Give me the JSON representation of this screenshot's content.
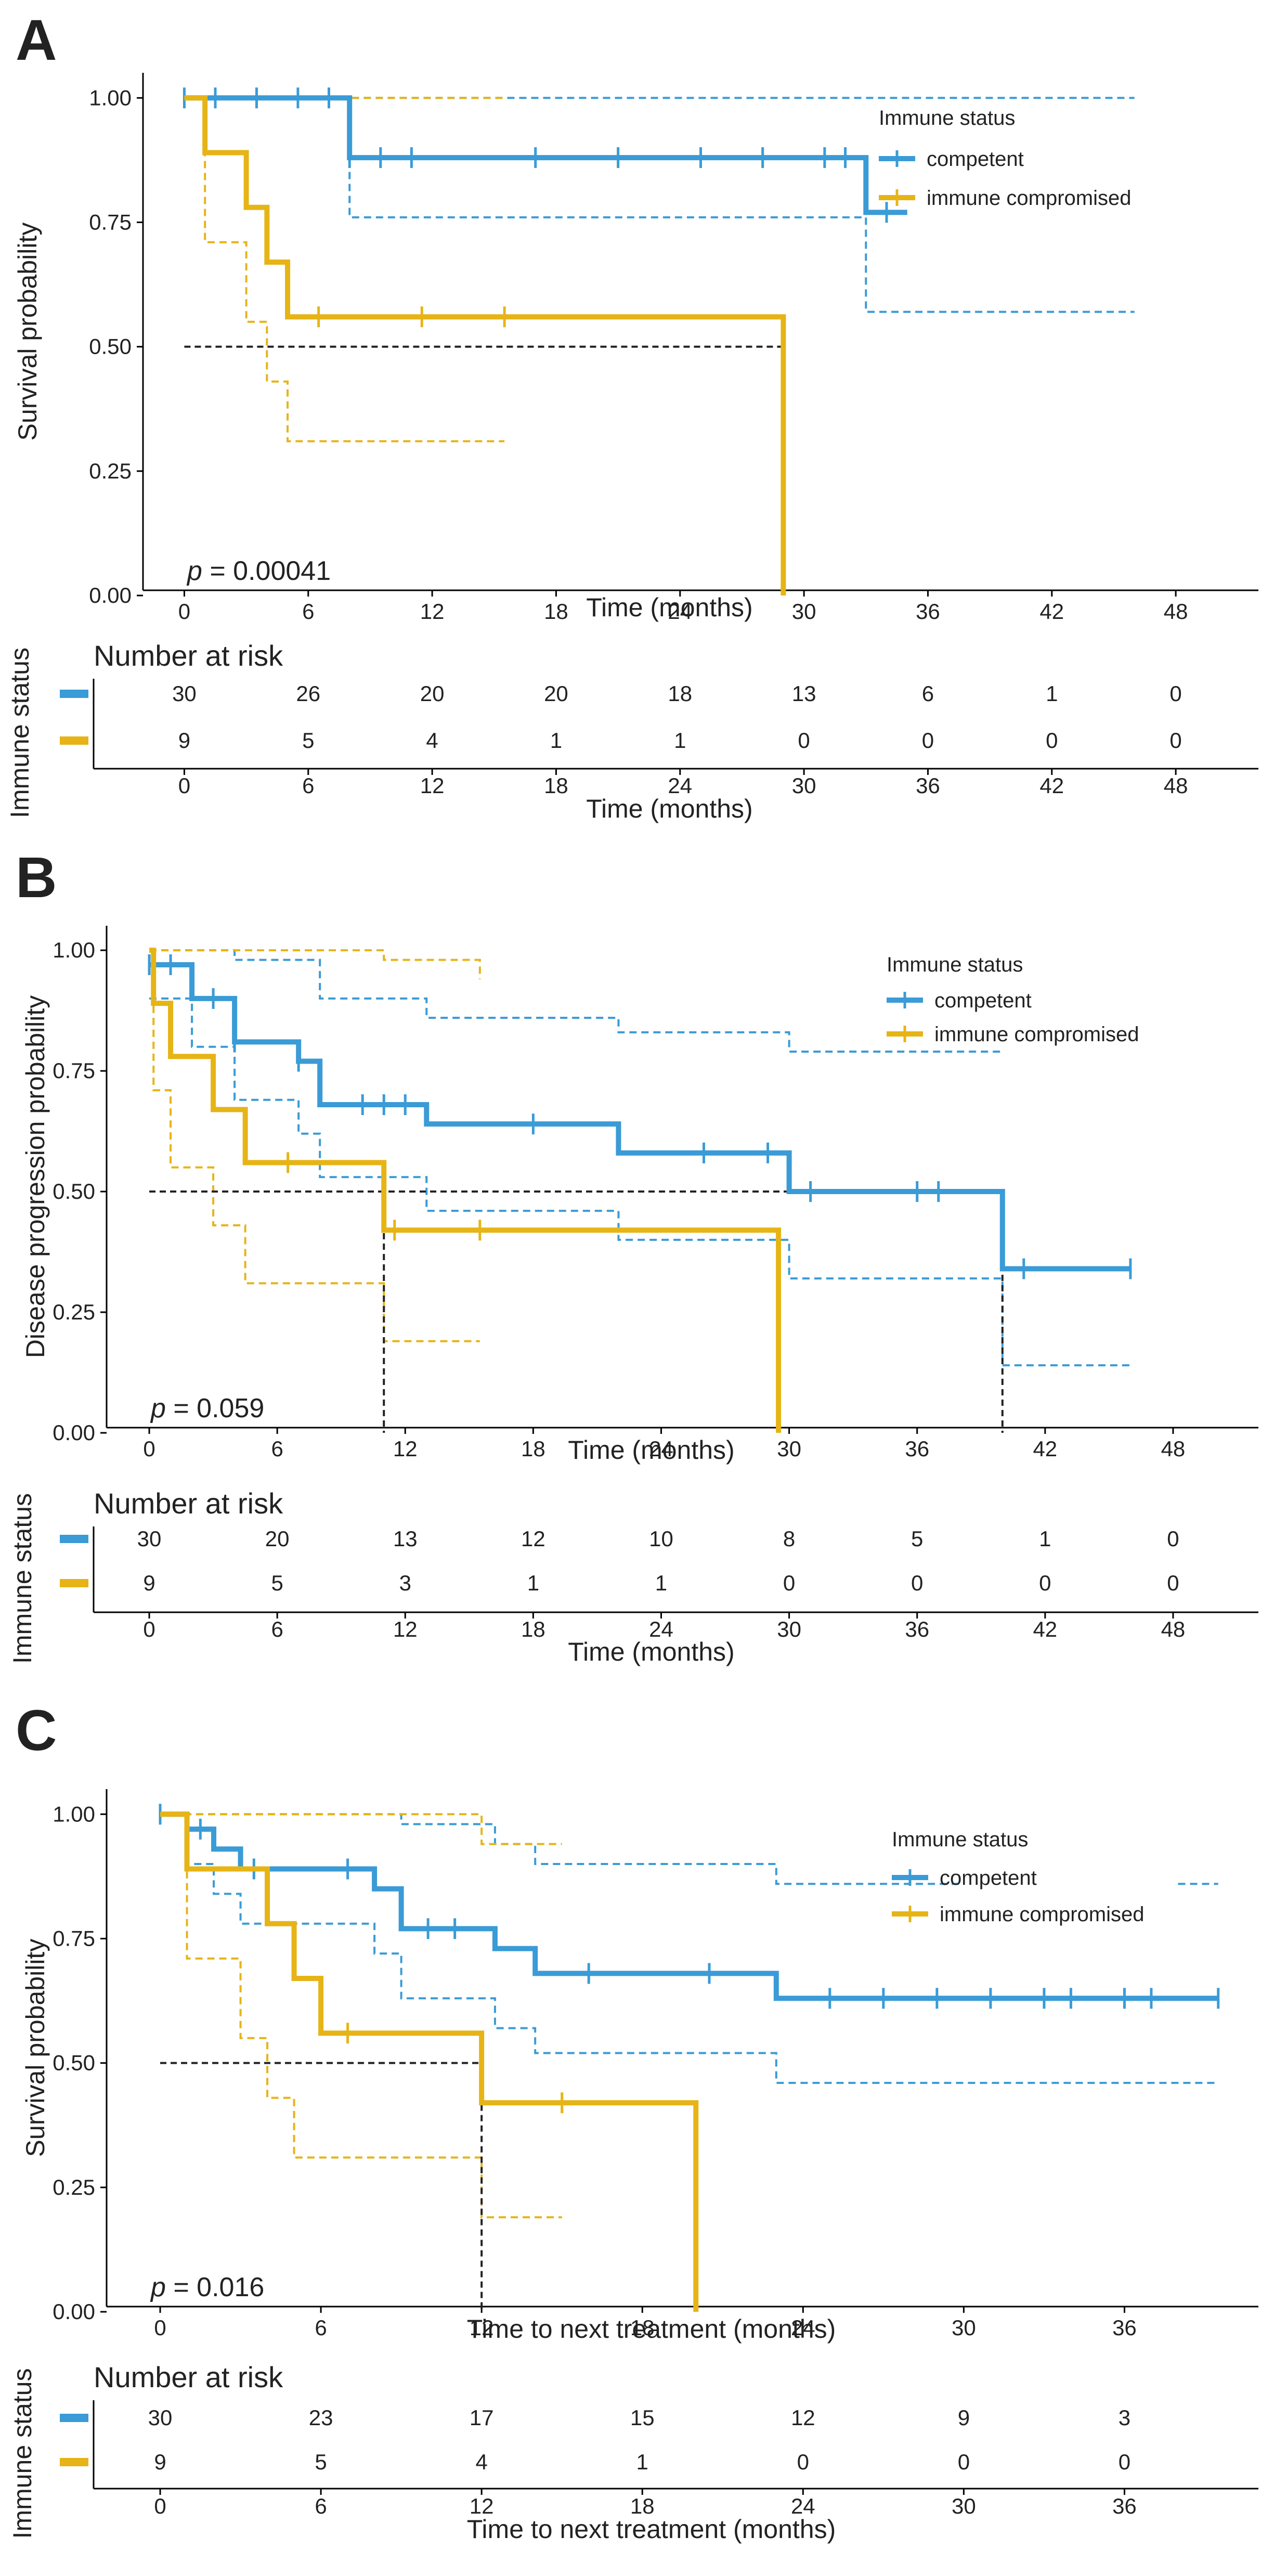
{
  "colors": {
    "competent": "#3a9bd6",
    "immune_compromised": "#e6b416",
    "median_line": "#222222"
  },
  "chart_data": [
    {
      "type": "line",
      "subtype": "kaplan-meier",
      "panel_label": "A",
      "ylabel": "Survival probability",
      "xlabel": "Time (months)",
      "xlim": [
        -2,
        52
      ],
      "ylim": [
        0,
        1.04
      ],
      "x_ticks": [
        0,
        6,
        12,
        18,
        24,
        30,
        36,
        42,
        48
      ],
      "y_ticks": [
        0,
        0.25,
        0.5,
        0.75,
        1
      ],
      "y_tick_labels": [
        "0.00",
        "0.25",
        "0.50",
        "0.75",
        "1.00"
      ],
      "x_tick_labels": [
        "0",
        "6",
        "12",
        "18",
        "24",
        "30",
        "36",
        "42",
        "48"
      ],
      "p_value": "= 0.00041",
      "p_label": "p",
      "legend": {
        "title": "Immune status",
        "entries": [
          "competent",
          "immune compromised"
        ],
        "position": "top-right"
      },
      "series": [
        {
          "name": "competent",
          "color_key": "competent",
          "steps": [
            [
              0,
              1.0
            ],
            [
              8,
              0.88
            ],
            [
              33,
              0.77
            ],
            [
              35,
              0.77
            ]
          ],
          "end_x": 35,
          "censor_x": [
            0,
            1.5,
            3.5,
            5.5,
            7,
            8,
            9.5,
            11,
            17,
            21,
            25,
            28,
            31,
            32,
            34
          ],
          "ci_upper": [
            [
              0,
              1.0
            ],
            [
              46,
              1.0
            ]
          ],
          "ci_lower": [
            [
              0,
              1.0
            ],
            [
              8,
              0.76
            ],
            [
              33,
              0.57
            ],
            [
              46,
              0.57
            ]
          ],
          "lower_end_x": 46,
          "upper_end_x": 46
        },
        {
          "name": "immune compromised",
          "color_key": "immune_compromised",
          "steps": [
            [
              0,
              1.0
            ],
            [
              1,
              0.89
            ],
            [
              3,
              0.78
            ],
            [
              4,
              0.67
            ],
            [
              5,
              0.56
            ],
            [
              29,
              0
            ]
          ],
          "end_x": 29,
          "censor_x": [
            6.5,
            11.5,
            15.5
          ],
          "ci_upper": [
            [
              0,
              1.0
            ],
            [
              1,
              1.0
            ],
            [
              15.5,
              1.0
            ]
          ],
          "ci_lower": [
            [
              0,
              1.0
            ],
            [
              1,
              0.71
            ],
            [
              3,
              0.55
            ],
            [
              4,
              0.43
            ],
            [
              5,
              0.31
            ],
            [
              15.5,
              0.31
            ]
          ],
          "lower_end_x": 15.5,
          "upper_end_x": 15.5
        }
      ],
      "median_lines": [
        {
          "from": [
            0,
            0.5
          ],
          "to": [
            29,
            0.5
          ]
        },
        {
          "from": [
            29,
            0.5
          ],
          "to": [
            29,
            0
          ]
        }
      ],
      "risk_table": {
        "title": "Number at risk",
        "ylabel": "Immune status",
        "xlabel": "Time (months)",
        "times": [
          0,
          6,
          12,
          18,
          24,
          30,
          36,
          42,
          48
        ],
        "rows": [
          {
            "name": "competent",
            "color_key": "competent",
            "counts": [
              "30",
              "26",
              "20",
              "20",
              "18",
              "13",
              "6",
              "1",
              "0"
            ]
          },
          {
            "name": "immune compromised",
            "color_key": "immune_compromised",
            "counts": [
              "9",
              "5",
              "4",
              "1",
              "1",
              "0",
              "0",
              "0",
              "0"
            ]
          }
        ]
      }
    },
    {
      "type": "line",
      "subtype": "kaplan-meier",
      "panel_label": "B",
      "ylabel": "Disease progression probability",
      "xlabel": "Time (months)",
      "xlim": [
        -2,
        52
      ],
      "ylim": [
        0,
        1.04
      ],
      "x_ticks": [
        0,
        6,
        12,
        18,
        24,
        30,
        36,
        42,
        48
      ],
      "y_ticks": [
        0,
        0.25,
        0.5,
        0.75,
        1
      ],
      "y_tick_labels": [
        "0.00",
        "0.25",
        "0.50",
        "0.75",
        "1.00"
      ],
      "x_tick_labels": [
        "0",
        "6",
        "12",
        "18",
        "24",
        "30",
        "36",
        "42",
        "48"
      ],
      "p_value": "= 0.059",
      "p_label": "p",
      "legend": {
        "title": "Immune status",
        "entries": [
          "competent",
          "immune compromised"
        ],
        "position": "top-right"
      },
      "series": [
        {
          "name": "competent",
          "color_key": "competent",
          "steps": [
            [
              0,
              0.97
            ],
            [
              2,
              0.9
            ],
            [
              4,
              0.81
            ],
            [
              7,
              0.77
            ],
            [
              8,
              0.68
            ],
            [
              13,
              0.64
            ],
            [
              22,
              0.58
            ],
            [
              30,
              0.5
            ],
            [
              40,
              0.34
            ],
            [
              46,
              0.34
            ]
          ],
          "end_x": 46,
          "censor_x": [
            0,
            1,
            3,
            4,
            7,
            10,
            11,
            12,
            18,
            26,
            29,
            31,
            36,
            37,
            41,
            46
          ],
          "ci_upper": [
            [
              0,
              1.0
            ],
            [
              4,
              1.0
            ],
            [
              4,
              0.98
            ],
            [
              7,
              0.98
            ],
            [
              8,
              0.9
            ],
            [
              13,
              0.86
            ],
            [
              22,
              0.83
            ],
            [
              30,
              0.79
            ],
            [
              40,
              0.79
            ]
          ],
          "ci_lower": [
            [
              0,
              0.9
            ],
            [
              2,
              0.8
            ],
            [
              4,
              0.69
            ],
            [
              7,
              0.62
            ],
            [
              8,
              0.53
            ],
            [
              13,
              0.46
            ],
            [
              22,
              0.4
            ],
            [
              30,
              0.32
            ],
            [
              40,
              0.14
            ],
            [
              46,
              0.14
            ]
          ],
          "lower_end_x": 46,
          "upper_end_x": 40
        },
        {
          "name": "immune compromised",
          "color_key": "immune_compromised",
          "steps": [
            [
              0,
              1.0
            ],
            [
              0.2,
              0.89
            ],
            [
              1,
              0.78
            ],
            [
              3,
              0.67
            ],
            [
              4.5,
              0.56
            ],
            [
              11,
              0.42
            ],
            [
              29.5,
              0
            ]
          ],
          "end_x": 29.5,
          "censor_x": [
            6.5,
            11.5,
            15.5
          ],
          "ci_upper": [
            [
              0,
              1.0
            ],
            [
              11,
              1.0
            ],
            [
              11,
              0.98
            ],
            [
              15.5,
              0.94
            ]
          ],
          "ci_lower": [
            [
              0,
              1.0
            ],
            [
              0.2,
              0.71
            ],
            [
              1,
              0.55
            ],
            [
              3,
              0.43
            ],
            [
              4.5,
              0.31
            ],
            [
              11,
              0.19
            ],
            [
              15.5,
              0.19
            ]
          ],
          "lower_end_x": 15.5,
          "upper_end_x": 15.5
        }
      ],
      "median_lines": [
        {
          "from": [
            0,
            0.5
          ],
          "to": [
            40,
            0.5
          ]
        },
        {
          "from": [
            11,
            0.5
          ],
          "to": [
            11,
            0
          ]
        },
        {
          "from": [
            40,
            0.5
          ],
          "to": [
            40,
            0
          ]
        }
      ],
      "risk_table": {
        "title": "Number at risk",
        "ylabel": "Immune status",
        "xlabel": "Time (months)",
        "times": [
          0,
          6,
          12,
          18,
          24,
          30,
          36,
          42,
          48
        ],
        "rows": [
          {
            "name": "competent",
            "color_key": "competent",
            "counts": [
              "30",
              "20",
              "13",
              "12",
              "10",
              "8",
              "5",
              "1",
              "0"
            ]
          },
          {
            "name": "immune compromised",
            "color_key": "immune_compromised",
            "counts": [
              "9",
              "5",
              "3",
              "1",
              "1",
              "0",
              "0",
              "0",
              "0"
            ]
          }
        ]
      }
    },
    {
      "type": "line",
      "subtype": "kaplan-meier",
      "panel_label": "C",
      "ylabel": "Survival probability",
      "xlabel": "Time to next treatment (months)",
      "xlim": [
        -2,
        41
      ],
      "ylim": [
        0,
        1.04
      ],
      "x_ticks": [
        0,
        6,
        12,
        18,
        24,
        30,
        36
      ],
      "y_ticks": [
        0,
        0.25,
        0.5,
        0.75,
        1
      ],
      "y_tick_labels": [
        "0.00",
        "0.25",
        "0.50",
        "0.75",
        "1.00"
      ],
      "x_tick_labels": [
        "0",
        "6",
        "12",
        "18",
        "24",
        "30",
        "36"
      ],
      "p_value": "= 0.016",
      "p_label": "p",
      "legend": {
        "title": "Immune status",
        "entries": [
          "competent",
          "immune compromised"
        ],
        "position": "top-right"
      },
      "series": [
        {
          "name": "competent",
          "color_key": "competent",
          "steps": [
            [
              0,
              1.0
            ],
            [
              1,
              0.97
            ],
            [
              2,
              0.93
            ],
            [
              3,
              0.89
            ],
            [
              8,
              0.85
            ],
            [
              9,
              0.77
            ],
            [
              12.5,
              0.73
            ],
            [
              14,
              0.68
            ],
            [
              23,
              0.63
            ],
            [
              39.5,
              0.63
            ]
          ],
          "end_x": 39.5,
          "censor_x": [
            0,
            1,
            1.5,
            3.5,
            7,
            10,
            11,
            16,
            20.5,
            25,
            27,
            29,
            31,
            33,
            34,
            36,
            37,
            39.5
          ],
          "ci_upper": [
            [
              0,
              1.0
            ],
            [
              8,
              1.0
            ],
            [
              9,
              0.98
            ],
            [
              12.5,
              0.94
            ],
            [
              14,
              0.9
            ],
            [
              23,
              0.86
            ],
            [
              30,
              0.86
            ]
          ],
          "ci_lower": [
            [
              0,
              1.0
            ],
            [
              1,
              0.9
            ],
            [
              2,
              0.84
            ],
            [
              3,
              0.78
            ],
            [
              8,
              0.72
            ],
            [
              9,
              0.63
            ],
            [
              12.5,
              0.57
            ],
            [
              14,
              0.52
            ],
            [
              23,
              0.46
            ],
            [
              39.5,
              0.46
            ]
          ],
          "lower_end_x": 39.5,
          "upper_end_x": 30,
          "upper_tail": [
            [
              38,
              0.86
            ],
            [
              39.5,
              0.86
            ]
          ]
        },
        {
          "name": "immune compromised",
          "color_key": "immune_compromised",
          "steps": [
            [
              0,
              1.0
            ],
            [
              1,
              0.89
            ],
            [
              4,
              0.78
            ],
            [
              5,
              0.67
            ],
            [
              6,
              0.56
            ],
            [
              12,
              0.42
            ],
            [
              20,
              0
            ]
          ],
          "end_x": 20,
          "censor_x": [
            7,
            15
          ],
          "ci_upper": [
            [
              0,
              1.0
            ],
            [
              12,
              1.0
            ],
            [
              12,
              0.94
            ],
            [
              15,
              0.94
            ]
          ],
          "ci_lower": [
            [
              0,
              1.0
            ],
            [
              1,
              0.71
            ],
            [
              3,
              0.55
            ],
            [
              4,
              0.43
            ],
            [
              5,
              0.31
            ],
            [
              12,
              0.19
            ],
            [
              15,
              0.19
            ]
          ],
          "lower_end_x": 15,
          "upper_end_x": 15
        }
      ],
      "median_lines": [
        {
          "from": [
            0,
            0.5
          ],
          "to": [
            12,
            0.5
          ]
        },
        {
          "from": [
            12,
            0.5
          ],
          "to": [
            12,
            0
          ]
        }
      ],
      "risk_table": {
        "title": "Number at risk",
        "ylabel": "Immune status",
        "xlabel": "Time to next treatment (months)",
        "times": [
          0,
          6,
          12,
          18,
          24,
          30,
          36
        ],
        "rows": [
          {
            "name": "competent",
            "color_key": "competent",
            "counts": [
              "30",
              "23",
              "17",
              "15",
              "12",
              "9",
              "3"
            ]
          },
          {
            "name": "immune compromised",
            "color_key": "immune_compromised",
            "counts": [
              "9",
              "5",
              "4",
              "1",
              "0",
              "0",
              "0"
            ]
          }
        ]
      }
    }
  ]
}
